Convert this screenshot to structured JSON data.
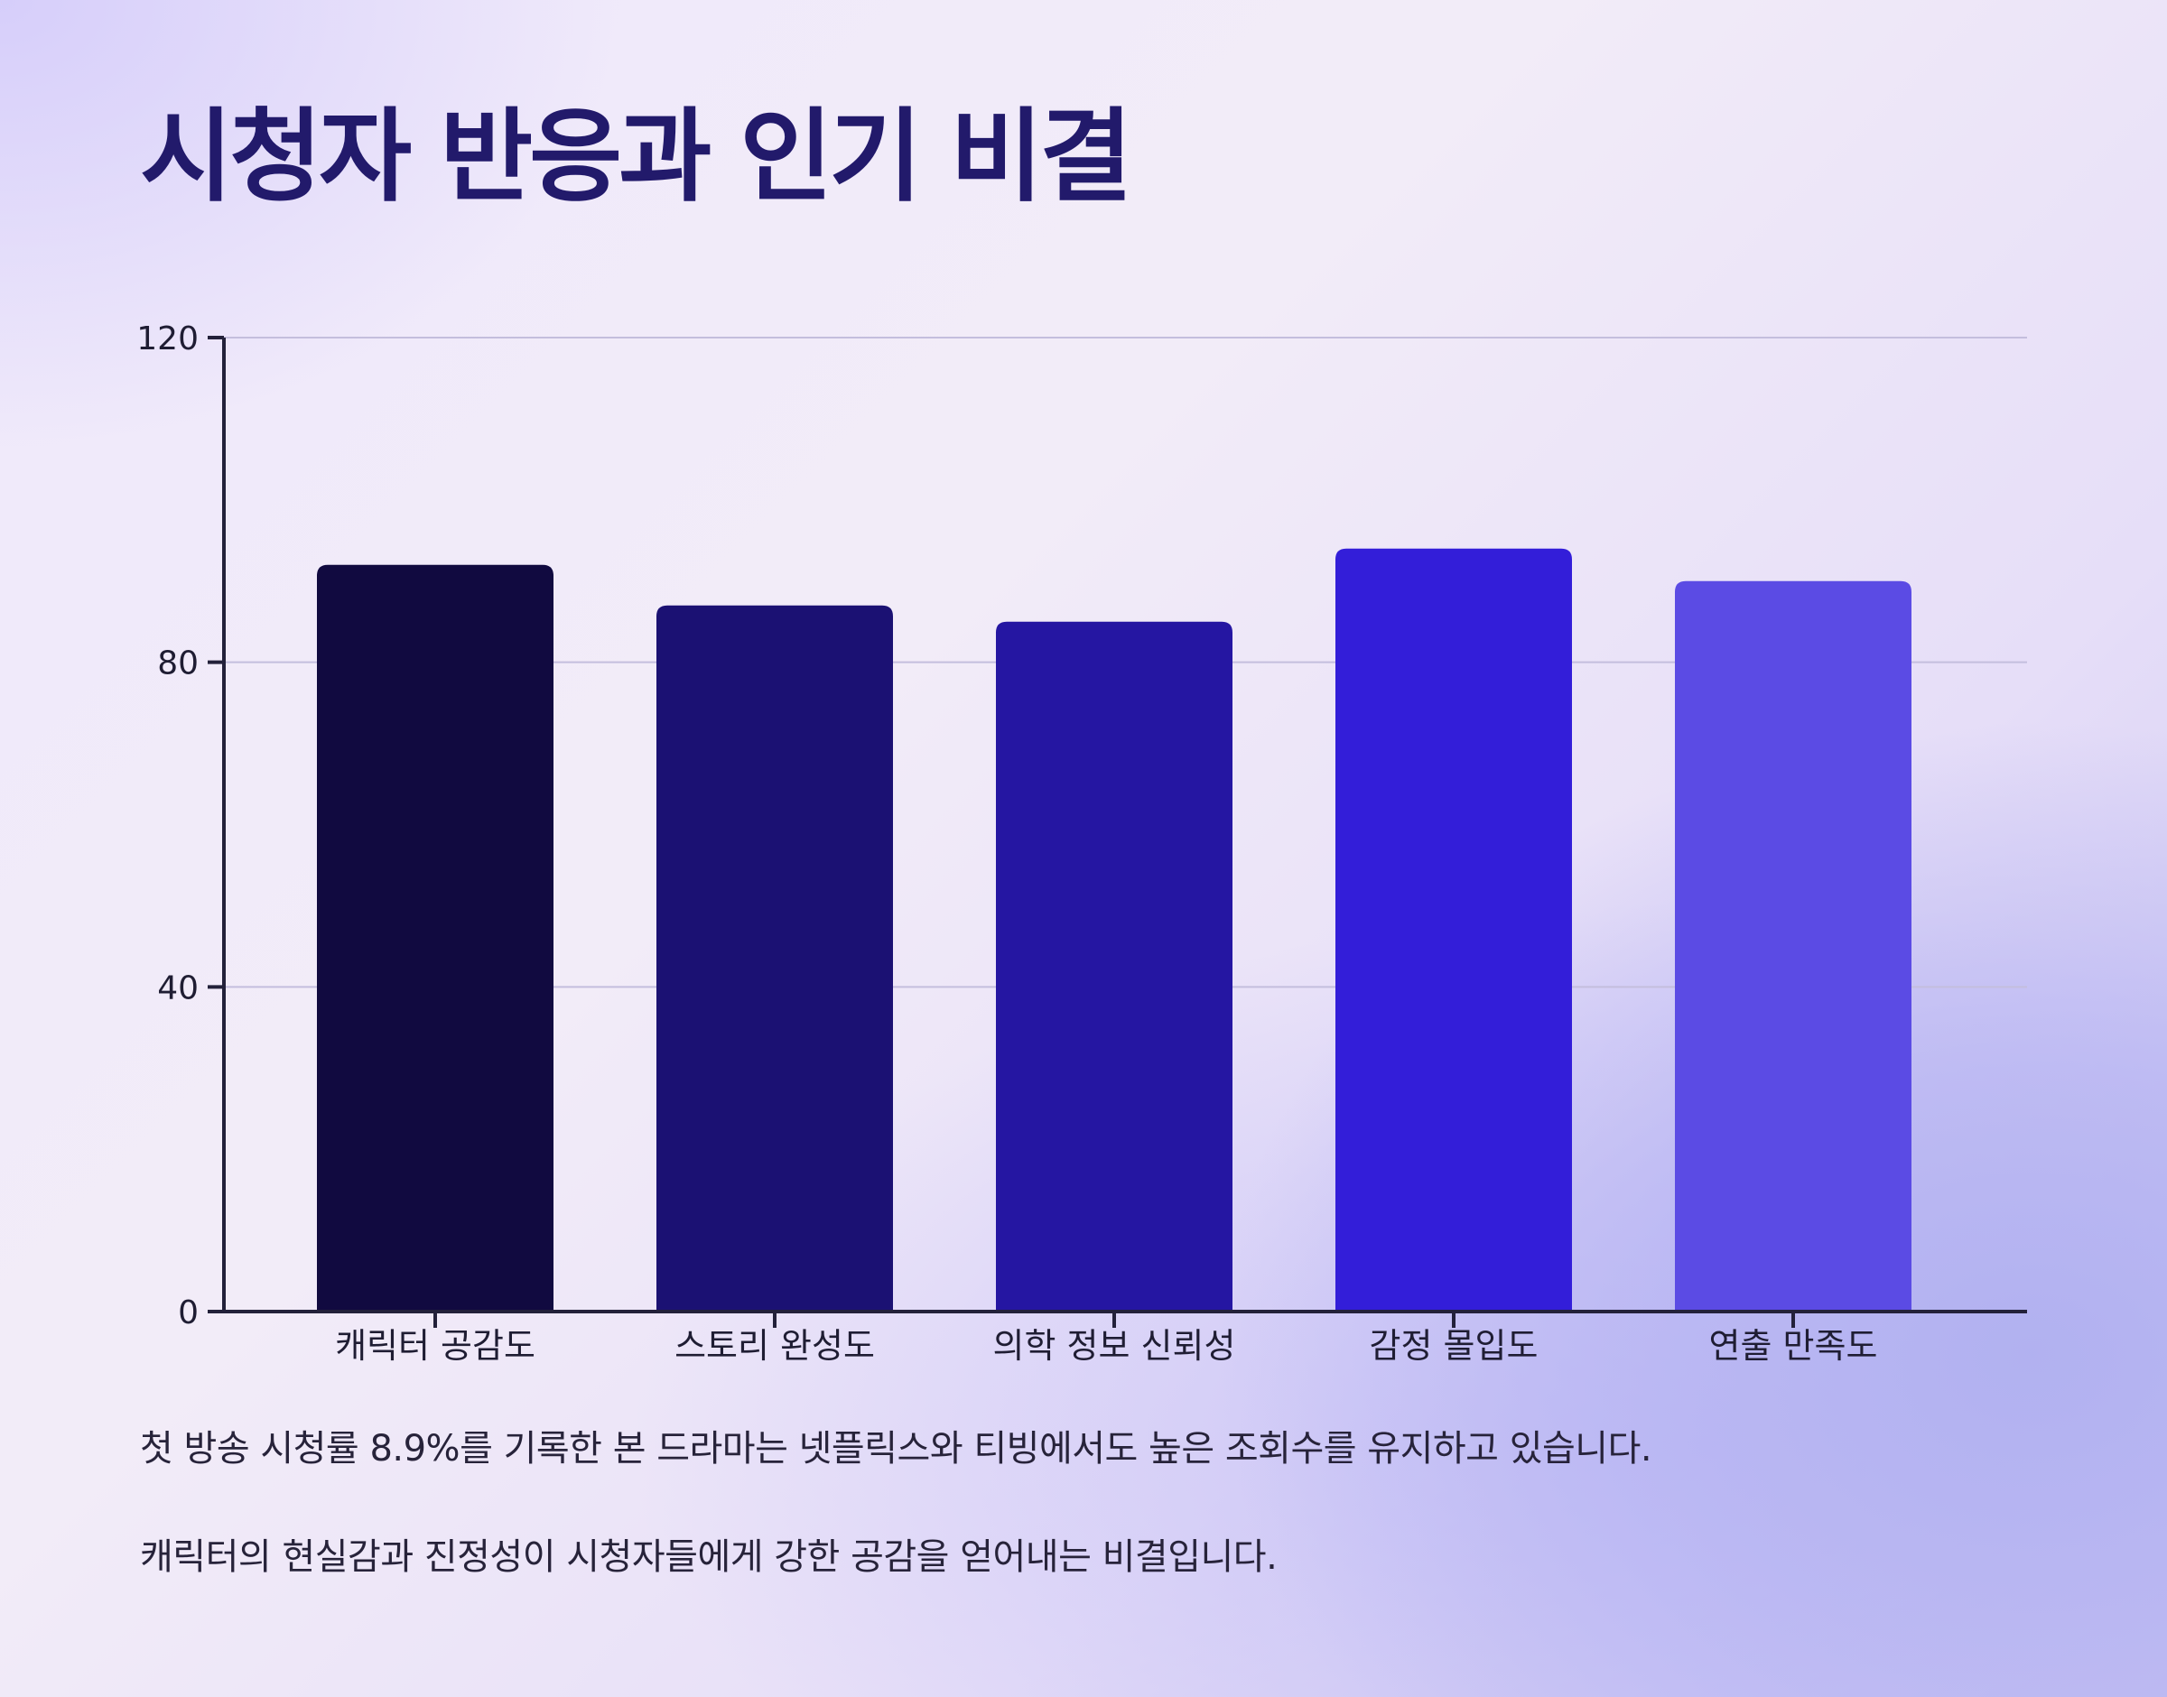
{
  "title": "시청자 반응과 인기 비결",
  "chart_data": {
    "type": "bar",
    "categories": [
      "캐릭터 공감도",
      "스토리 완성도",
      "의학 정보 신뢰성",
      "감정 몰입도",
      "연출 만족도"
    ],
    "values": [
      92,
      87,
      85,
      94,
      90
    ],
    "bar_colors": [
      "#110a40",
      "#1b1173",
      "#2516a2",
      "#331ed9",
      "#5b4be4"
    ],
    "ylim": [
      0,
      120
    ],
    "yticks": [
      0,
      40,
      80,
      120
    ],
    "grid": true,
    "xlabel": "",
    "ylabel": ""
  },
  "captions": [
    "첫 방송 시청률 8.9%를 기록한 본 드라마는 넷플릭스와 티빙에서도 높은 조회수를 유지하고 있습니다.",
    "캐릭터의 현실감과 진정성이 시청자들에게 강한 공감을 얻어내는 비결입니다."
  ],
  "colors": {
    "title": "#221a6b",
    "axis": "#23213a",
    "grid": "#c4bedd"
  }
}
